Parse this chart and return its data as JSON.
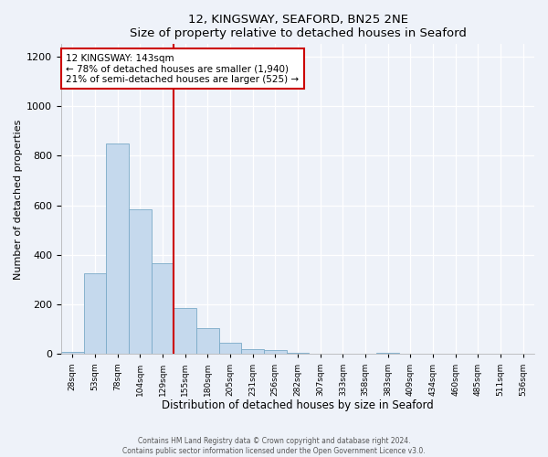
{
  "title": "12, KINGSWAY, SEAFORD, BN25 2NE",
  "subtitle": "Size of property relative to detached houses in Seaford",
  "xlabel": "Distribution of detached houses by size in Seaford",
  "ylabel": "Number of detached properties",
  "bin_labels": [
    "28sqm",
    "53sqm",
    "78sqm",
    "104sqm",
    "129sqm",
    "155sqm",
    "180sqm",
    "205sqm",
    "231sqm",
    "256sqm",
    "282sqm",
    "307sqm",
    "333sqm",
    "358sqm",
    "383sqm",
    "409sqm",
    "434sqm",
    "460sqm",
    "485sqm",
    "511sqm",
    "536sqm"
  ],
  "bar_values": [
    10,
    325,
    848,
    583,
    368,
    185,
    103,
    46,
    20,
    15,
    5,
    0,
    0,
    0,
    5,
    0,
    0,
    0,
    0,
    0,
    0
  ],
  "bar_color": "#c5d9ed",
  "bar_edge_color": "#7aaac8",
  "vline_x": 5.0,
  "vline_color": "#cc0000",
  "annotation_title": "12 KINGSWAY: 143sqm",
  "annotation_line1": "← 78% of detached houses are smaller (1,940)",
  "annotation_line2": "21% of semi-detached houses are larger (525) →",
  "annotation_box_color": "#cc0000",
  "ylim": [
    0,
    1250
  ],
  "yticks": [
    0,
    200,
    400,
    600,
    800,
    1000,
    1200
  ],
  "footer1": "Contains HM Land Registry data © Crown copyright and database right 2024.",
  "footer2": "Contains public sector information licensed under the Open Government Licence v3.0.",
  "background_color": "#eef2f9"
}
